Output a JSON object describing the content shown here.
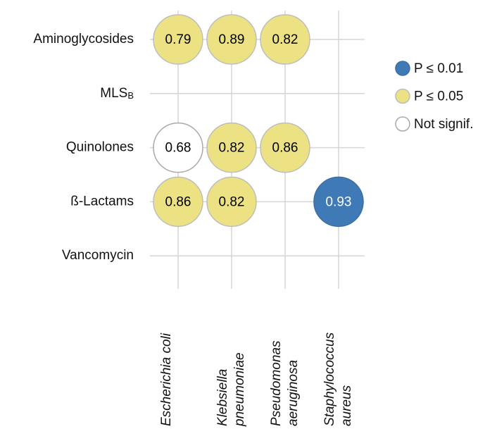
{
  "chart_data": {
    "type": "dot-matrix",
    "rows": [
      "Aminoglycosides",
      {
        "label": "MLS",
        "subscript": "B"
      },
      "Quinolones",
      "ß-Lactams",
      "Vancomycin"
    ],
    "columns": [
      [
        "Escherichia coli"
      ],
      [
        "Klebsiella",
        "pneumoniae"
      ],
      [
        "Pseudomonas",
        "aeruginosa"
      ],
      [
        "Staphylococcus",
        "aureus"
      ]
    ],
    "series": [
      {
        "name": "P ≤ 0.01",
        "color": "#3f7ab6",
        "stroke": "#3a6fa5",
        "label_color": "#ffffff",
        "values": [
          [
            null,
            null,
            null,
            null
          ],
          [
            null,
            null,
            null,
            null
          ],
          [
            null,
            null,
            null,
            null
          ],
          [
            null,
            null,
            null,
            0.93
          ],
          [
            null,
            null,
            null,
            null
          ]
        ]
      },
      {
        "name": "P ≤ 0.05",
        "color": "#ede283",
        "stroke": "#bdbdbd",
        "label_color": "#000000",
        "values": [
          [
            0.79,
            0.89,
            0.82,
            null
          ],
          [
            null,
            null,
            null,
            null
          ],
          [
            null,
            0.82,
            0.86,
            null
          ],
          [
            0.86,
            0.82,
            null,
            null
          ],
          [
            null,
            null,
            null,
            null
          ]
        ]
      },
      {
        "name": "Not signif.",
        "color": "#ffffff",
        "stroke": "#a9a9a9",
        "label_color": "#000000",
        "values": [
          [
            null,
            null,
            null,
            null
          ],
          [
            null,
            null,
            null,
            null
          ],
          [
            0.68,
            null,
            null,
            null
          ],
          [
            null,
            null,
            null,
            null
          ],
          [
            null,
            null,
            null,
            null
          ]
        ]
      }
    ]
  }
}
